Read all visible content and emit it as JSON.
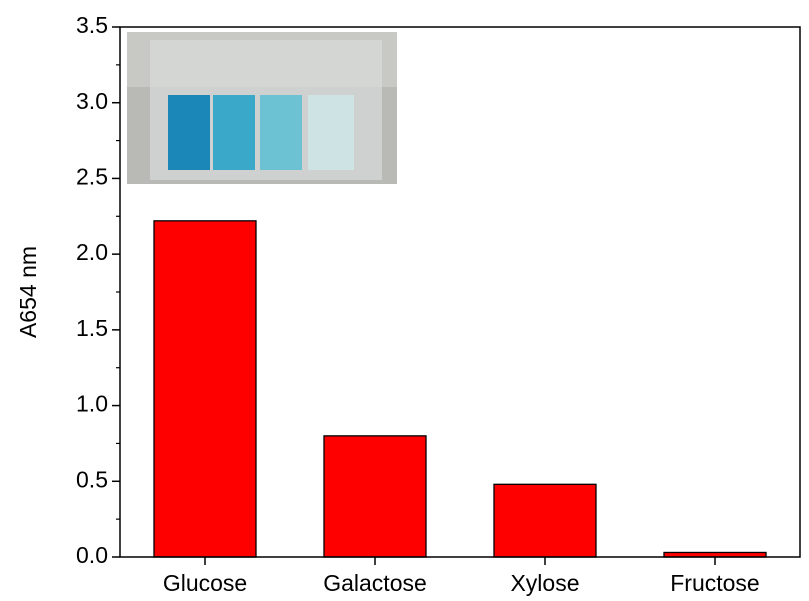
{
  "chart_data": {
    "type": "bar",
    "y_label": "A654 nm",
    "categories": [
      "Glucose",
      "Galactose",
      "Xylose",
      "Fructose"
    ],
    "values": [
      2.22,
      0.8,
      0.48,
      0.03
    ],
    "color": "#ff0000",
    "ylim": [
      0,
      3.5
    ],
    "yticks": [
      {
        "value": 0,
        "label": "0.0"
      },
      {
        "value": 0.5,
        "label": "0.5"
      },
      {
        "value": 1,
        "label": "1.0"
      },
      {
        "value": 1.5,
        "label": "1.5"
      },
      {
        "value": 2,
        "label": "2.0"
      },
      {
        "value": 2.5,
        "label": "2.5"
      },
      {
        "value": 3,
        "label": "3.0"
      },
      {
        "value": 3.5,
        "label": "3.5"
      }
    ]
  }
}
